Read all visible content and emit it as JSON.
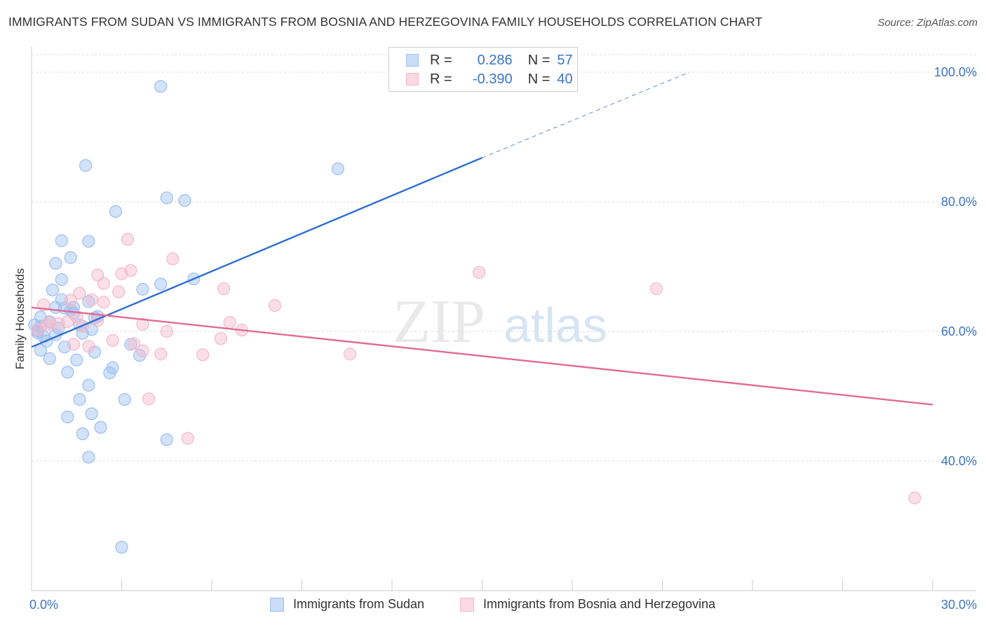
{
  "title": "IMMIGRANTS FROM SUDAN VS IMMIGRANTS FROM BOSNIA AND HERZEGOVINA FAMILY HOUSEHOLDS CORRELATION CHART",
  "source": "Source: ZipAtlas.com",
  "watermark": {
    "zip": "ZIP",
    "atlas": "atlas"
  },
  "legend": {
    "rows": [
      {
        "r_label": "R =",
        "r_value": "0.286",
        "n_label": "N =",
        "n_value": "57",
        "color": "#9cbfef"
      },
      {
        "r_label": "R =",
        "r_value": "-0.390",
        "n_label": "N =",
        "n_value": "40",
        "color": "#f5b8cb"
      }
    ]
  },
  "chart_data": {
    "type": "scatter",
    "title": "IMMIGRANTS FROM SUDAN VS IMMIGRANTS FROM BOSNIA AND HERZEGOVINA FAMILY HOUSEHOLDS CORRELATION CHART",
    "xlabel": "",
    "ylabel": "Family Households",
    "xlim": [
      0,
      30
    ],
    "ylim": [
      20,
      104
    ],
    "x_tick_labels": [
      "0.0%",
      "30.0%"
    ],
    "y_ticks": [
      40,
      60,
      80,
      100
    ],
    "y_tick_labels": [
      "40.0%",
      "60.0%",
      "80.0%",
      "100.0%"
    ],
    "grid": true,
    "legend_position": "top-center",
    "series": [
      {
        "name": "Immigrants from Sudan",
        "color": "#9cbfef",
        "line_color": "#2f6fd0",
        "trend": {
          "x_start": 0.0,
          "y_start": 57.6,
          "x_end": 15.0,
          "y_end": 86.8,
          "dash_x_end": 21.9,
          "dash_y_end": 100.0
        },
        "points": [
          [
            4.3,
            97.8
          ],
          [
            1.8,
            85.6
          ],
          [
            10.2,
            85.1
          ],
          [
            4.5,
            80.6
          ],
          [
            5.1,
            80.2
          ],
          [
            2.8,
            78.5
          ],
          [
            1.0,
            74.0
          ],
          [
            1.9,
            73.9
          ],
          [
            1.3,
            71.4
          ],
          [
            0.8,
            70.5
          ],
          [
            5.4,
            68.1
          ],
          [
            1.0,
            68.0
          ],
          [
            4.3,
            67.3
          ],
          [
            3.7,
            66.5
          ],
          [
            0.7,
            66.4
          ],
          [
            1.0,
            64.9
          ],
          [
            1.9,
            64.6
          ],
          [
            0.8,
            63.7
          ],
          [
            1.1,
            63.6
          ],
          [
            1.4,
            63.7
          ],
          [
            1.3,
            63.3
          ],
          [
            2.1,
            62.1
          ],
          [
            0.3,
            62.2
          ],
          [
            0.1,
            61.0
          ],
          [
            0.3,
            60.8
          ],
          [
            1.7,
            59.7
          ],
          [
            0.8,
            59.5
          ],
          [
            0.5,
            58.5
          ],
          [
            0.3,
            57.1
          ],
          [
            2.1,
            56.8
          ],
          [
            3.6,
            56.3
          ],
          [
            0.6,
            55.8
          ],
          [
            1.5,
            55.6
          ],
          [
            1.2,
            53.7
          ],
          [
            2.7,
            54.4
          ],
          [
            2.6,
            53.6
          ],
          [
            1.9,
            51.7
          ],
          [
            1.6,
            49.5
          ],
          [
            3.1,
            49.5
          ],
          [
            2.0,
            47.3
          ],
          [
            1.2,
            46.8
          ],
          [
            2.3,
            45.2
          ],
          [
            1.7,
            44.2
          ],
          [
            4.5,
            43.3
          ],
          [
            1.9,
            40.6
          ],
          [
            3.0,
            26.7
          ],
          [
            0.2,
            60.1
          ],
          [
            0.9,
            60.5
          ],
          [
            2.2,
            62.3
          ],
          [
            0.4,
            59.2
          ],
          [
            1.6,
            61.0
          ],
          [
            0.6,
            61.5
          ],
          [
            1.4,
            62.8
          ],
          [
            2.0,
            60.3
          ],
          [
            0.2,
            59.8
          ],
          [
            3.3,
            58.0
          ],
          [
            1.1,
            57.6
          ]
        ]
      },
      {
        "name": "Immigrants from Bosnia and Herzegovina",
        "color": "#f5b8cb",
        "line_color": "#e16b95",
        "trend": {
          "x_start": 0.0,
          "y_start": 63.7,
          "x_end": 30.0,
          "y_end": 48.7
        },
        "points": [
          [
            3.2,
            74.2
          ],
          [
            4.7,
            71.2
          ],
          [
            3.3,
            69.4
          ],
          [
            3.0,
            68.9
          ],
          [
            2.2,
            68.7
          ],
          [
            2.4,
            67.4
          ],
          [
            14.9,
            69.1
          ],
          [
            20.8,
            66.6
          ],
          [
            6.4,
            66.6
          ],
          [
            2.9,
            66.1
          ],
          [
            1.6,
            65.9
          ],
          [
            2.0,
            64.9
          ],
          [
            1.3,
            64.8
          ],
          [
            2.4,
            64.5
          ],
          [
            0.4,
            64.1
          ],
          [
            8.1,
            64.0
          ],
          [
            1.5,
            62.3
          ],
          [
            0.6,
            61.3
          ],
          [
            0.9,
            61.2
          ],
          [
            1.7,
            60.8
          ],
          [
            6.6,
            61.4
          ],
          [
            3.7,
            61.1
          ],
          [
            7.0,
            60.2
          ],
          [
            4.5,
            60.0
          ],
          [
            0.2,
            60.3
          ],
          [
            6.3,
            58.9
          ],
          [
            2.7,
            58.6
          ],
          [
            3.4,
            58.1
          ],
          [
            1.4,
            58.0
          ],
          [
            1.9,
            57.7
          ],
          [
            3.7,
            57.0
          ],
          [
            4.3,
            56.5
          ],
          [
            5.7,
            56.4
          ],
          [
            10.6,
            56.5
          ],
          [
            3.9,
            49.6
          ],
          [
            5.2,
            43.5
          ],
          [
            29.4,
            34.3
          ],
          [
            0.5,
            61.0
          ],
          [
            2.2,
            61.7
          ],
          [
            1.2,
            61.5
          ]
        ]
      }
    ]
  }
}
